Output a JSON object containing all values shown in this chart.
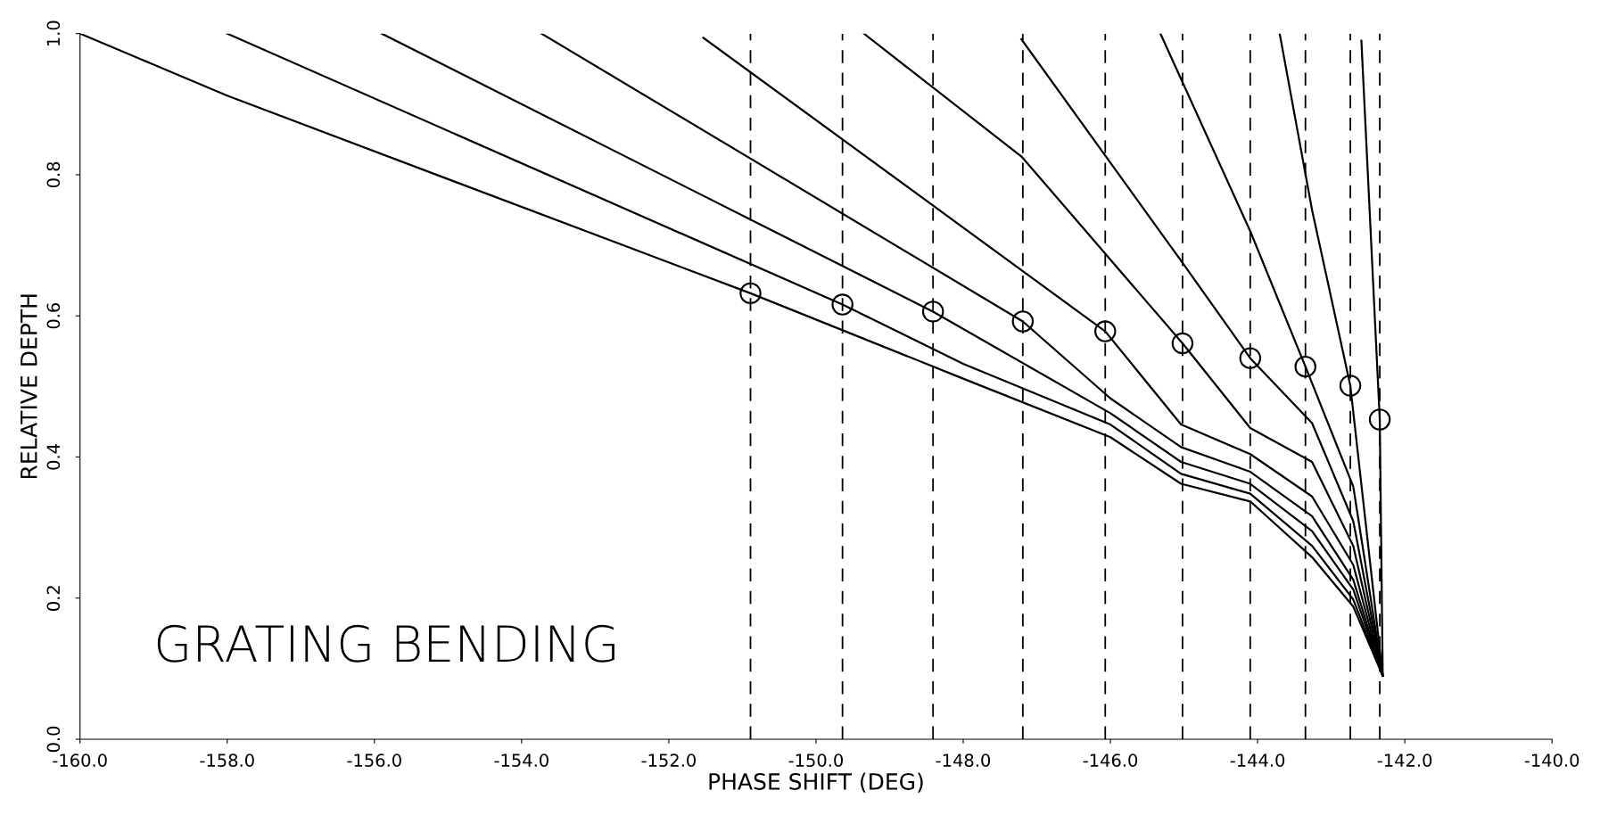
{
  "chart_data": {
    "type": "line",
    "xlabel": "PHASE SHIFT (DEG)",
    "ylabel": "RELATIVE DEPTH",
    "annotations": [
      "GRATING BENDING"
    ],
    "xlim": [
      -160,
      -140
    ],
    "ylim": [
      0,
      1
    ],
    "xticks": [
      {
        "value": -160,
        "label": "-160.0"
      },
      {
        "value": -158,
        "label": "-158.0"
      },
      {
        "value": -156,
        "label": "-156.0"
      },
      {
        "value": -154,
        "label": "-154.0"
      },
      {
        "value": -152,
        "label": "-152.0"
      },
      {
        "value": -150,
        "label": "-150.0"
      },
      {
        "value": -148,
        "label": "-148.0"
      },
      {
        "value": -146,
        "label": "-146.0"
      },
      {
        "value": -144,
        "label": "-144.0"
      },
      {
        "value": -142,
        "label": "-142.0"
      },
      {
        "value": -140,
        "label": "-140.0"
      }
    ],
    "yticks": [
      {
        "value": 0,
        "label": "0.0"
      },
      {
        "value": 0.2,
        "label": "0.2"
      },
      {
        "value": 0.4,
        "label": "0.4"
      },
      {
        "value": 0.6,
        "label": "0.6"
      },
      {
        "value": 0.8,
        "label": "0.8"
      },
      {
        "value": 1,
        "label": "1.0"
      }
    ],
    "grid": false,
    "legend": false,
    "line_style": "solid",
    "series": [
      {
        "color": "#000000",
        "x": [
          -160,
          -158,
          -150.89,
          -148,
          -146,
          -145.04,
          -144.1,
          -143.26,
          -142.7,
          -142.3
        ],
        "values": [
          1.0,
          0.912,
          0.632,
          0.511,
          0.428,
          0.362,
          0.337,
          0.258,
          0.188,
          0.09
        ]
      },
      {
        "color": "#000000",
        "x": [
          -158,
          -149.64,
          -148,
          -146,
          -145.04,
          -144.1,
          -143.26,
          -142.7,
          -142.3
        ],
        "values": [
          1.0,
          0.616,
          0.532,
          0.446,
          0.376,
          0.348,
          0.274,
          0.198,
          0.09
        ]
      },
      {
        "color": "#000000",
        "x": [
          -155.9,
          -148.41,
          -146,
          -145.04,
          -144.1,
          -143.26,
          -142.7,
          -142.3
        ],
        "values": [
          1.0,
          0.606,
          0.462,
          0.393,
          0.362,
          0.295,
          0.212,
          0.09
        ]
      },
      {
        "color": "#000000",
        "x": [
          -153.73,
          -147.19,
          -146,
          -145.04,
          -144.1,
          -143.26,
          -142.7,
          -142.3
        ],
        "values": [
          1.0,
          0.592,
          0.483,
          0.414,
          0.379,
          0.316,
          0.226,
          0.09
        ]
      },
      {
        "color": "#000000",
        "x": [
          -151.53,
          -146.07,
          -145.04,
          -144.1,
          -143.26,
          -142.7,
          -142.3
        ],
        "values": [
          0.994,
          0.578,
          0.446,
          0.404,
          0.344,
          0.247,
          0.09
        ]
      },
      {
        "color": "#000000",
        "x": [
          -149.35,
          -147.2,
          -145.02,
          -144.1,
          -143.26,
          -142.7,
          -142.3
        ],
        "values": [
          1.0,
          0.825,
          0.561,
          0.441,
          0.393,
          0.274,
          0.09
        ]
      },
      {
        "color": "#000000",
        "x": [
          -147.21,
          -145.04,
          -144.1,
          -143.26,
          -142.7,
          -142.3
        ],
        "values": [
          0.992,
          0.678,
          0.54,
          0.448,
          0.309,
          0.09
        ]
      },
      {
        "color": "#000000",
        "x": [
          -145.32,
          -144.1,
          -143.35,
          -142.7,
          -142.3
        ],
        "values": [
          1.0,
          0.72,
          0.528,
          0.358,
          0.09
        ]
      },
      {
        "color": "#000000",
        "x": [
          -143.7,
          -143.26,
          -142.74,
          -142.3
        ],
        "values": [
          1.0,
          0.75,
          0.501,
          0.09
        ]
      },
      {
        "color": "#000000",
        "x": [
          -142.59,
          -142.34,
          -142.3
        ],
        "values": [
          0.99,
          0.453,
          0.09
        ]
      },
      {
        "type": "scatter",
        "marker": "circle",
        "color": "#000000",
        "x": [
          -150.89,
          -149.64,
          -148.41,
          -147.19,
          -146.07,
          -145.02,
          -144.1,
          -143.35,
          -142.74,
          -142.34
        ],
        "values": [
          0.632,
          0.616,
          0.606,
          0.592,
          0.578,
          0.561,
          0.54,
          0.528,
          0.501,
          0.453
        ]
      }
    ],
    "ref_lines": [
      {
        "axis": "x",
        "value": -150.89,
        "line_style": "dashed",
        "color": "#000000"
      },
      {
        "axis": "x",
        "value": -149.64,
        "line_style": "dashed",
        "color": "#000000"
      },
      {
        "axis": "x",
        "value": -148.41,
        "line_style": "dashed",
        "color": "#000000"
      },
      {
        "axis": "x",
        "value": -147.19,
        "line_style": "dashed",
        "color": "#000000"
      },
      {
        "axis": "x",
        "value": -146.07,
        "line_style": "dashed",
        "color": "#000000"
      },
      {
        "axis": "x",
        "value": -145.02,
        "line_style": "dashed",
        "color": "#000000"
      },
      {
        "axis": "x",
        "value": -144.1,
        "line_style": "dashed",
        "color": "#000000"
      },
      {
        "axis": "x",
        "value": -143.35,
        "line_style": "dashed",
        "color": "#000000"
      },
      {
        "axis": "x",
        "value": -142.74,
        "line_style": "dashed",
        "color": "#000000"
      },
      {
        "axis": "x",
        "value": -142.34,
        "line_style": "dashed",
        "color": "#000000"
      }
    ]
  }
}
